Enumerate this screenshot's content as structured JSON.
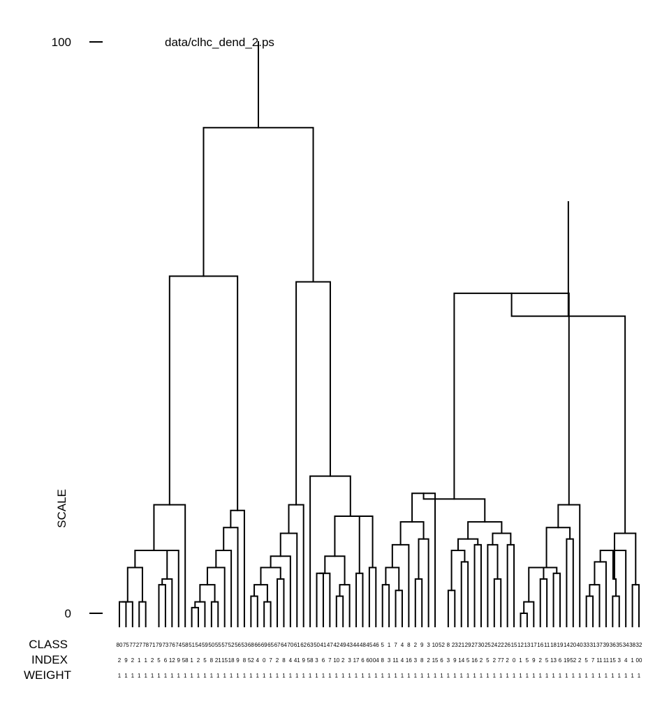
{
  "chart_data": {
    "type": "dendrogram",
    "title": "data/clhc_dend_2.ps",
    "ylabel": "SCALE",
    "ylim": [
      0,
      100
    ],
    "yticks": [
      {
        "value": 100,
        "label": "100"
      },
      {
        "value": 0,
        "label": "0"
      }
    ],
    "row_labels": {
      "class": "CLASS",
      "index": "INDEX",
      "weight": "WEIGHT"
    },
    "leaves": [
      {
        "class": "80",
        "index": "2",
        "weight": "1"
      },
      {
        "class": "75",
        "index": "9",
        "weight": "1"
      },
      {
        "class": "77",
        "index": "2",
        "weight": "1"
      },
      {
        "class": "27",
        "index": "1",
        "weight": "1"
      },
      {
        "class": "78",
        "index": "1",
        "weight": "1"
      },
      {
        "class": "71",
        "index": "2",
        "weight": "1"
      },
      {
        "class": "79",
        "index": "5",
        "weight": "1"
      },
      {
        "class": "73",
        "index": "6",
        "weight": "1"
      },
      {
        "class": "76",
        "index": "12",
        "weight": "1"
      },
      {
        "class": "74",
        "index": "9",
        "weight": "1"
      },
      {
        "class": "58",
        "index": "58",
        "weight": "1"
      },
      {
        "class": "51",
        "index": "1",
        "weight": "1"
      },
      {
        "class": "54",
        "index": "2",
        "weight": "1"
      },
      {
        "class": "59",
        "index": "5",
        "weight": "1"
      },
      {
        "class": "50",
        "index": "8",
        "weight": "1"
      },
      {
        "class": "55",
        "index": "21",
        "weight": "1"
      },
      {
        "class": "57",
        "index": "15",
        "weight": "1"
      },
      {
        "class": "52",
        "index": "18",
        "weight": "1"
      },
      {
        "class": "56",
        "index": "9",
        "weight": "1"
      },
      {
        "class": "53",
        "index": "8",
        "weight": "1"
      },
      {
        "class": "68",
        "index": "52",
        "weight": "1"
      },
      {
        "class": "66",
        "index": "4",
        "weight": "1"
      },
      {
        "class": "69",
        "index": "0",
        "weight": "1"
      },
      {
        "class": "65",
        "index": "7",
        "weight": "1"
      },
      {
        "class": "67",
        "index": "2",
        "weight": "1"
      },
      {
        "class": "64",
        "index": "8",
        "weight": "1"
      },
      {
        "class": "70",
        "index": "4",
        "weight": "1"
      },
      {
        "class": "61",
        "index": "41",
        "weight": "1"
      },
      {
        "class": "62",
        "index": "9",
        "weight": "1"
      },
      {
        "class": "63",
        "index": "58",
        "weight": "1"
      },
      {
        "class": "50",
        "index": "3",
        "weight": "1"
      },
      {
        "class": "41",
        "index": "6",
        "weight": "1"
      },
      {
        "class": "47",
        "index": "7",
        "weight": "1"
      },
      {
        "class": "42",
        "index": "10",
        "weight": "1"
      },
      {
        "class": "49",
        "index": "2",
        "weight": "1"
      },
      {
        "class": "43",
        "index": "3",
        "weight": "1"
      },
      {
        "class": "44",
        "index": "17",
        "weight": "1"
      },
      {
        "class": "48",
        "index": "6",
        "weight": "1"
      },
      {
        "class": "45",
        "index": "60",
        "weight": "1"
      },
      {
        "class": "46",
        "index": "04",
        "weight": "1"
      },
      {
        "class": "5",
        "index": "8",
        "weight": "1"
      },
      {
        "class": "1",
        "index": "3",
        "weight": "1"
      },
      {
        "class": "7",
        "index": "11",
        "weight": "1"
      },
      {
        "class": "4",
        "index": "4",
        "weight": "1"
      },
      {
        "class": "8",
        "index": "16",
        "weight": "1"
      },
      {
        "class": "2",
        "index": "3",
        "weight": "1"
      },
      {
        "class": "9",
        "index": "8",
        "weight": "1"
      },
      {
        "class": "3",
        "index": "2",
        "weight": "1"
      },
      {
        "class": "10",
        "index": "15",
        "weight": "1"
      },
      {
        "class": "52",
        "index": "6",
        "weight": "1"
      },
      {
        "class": "8",
        "index": "3",
        "weight": "1"
      },
      {
        "class": "23",
        "index": "9",
        "weight": "1"
      },
      {
        "class": "21",
        "index": "14",
        "weight": "1"
      },
      {
        "class": "29",
        "index": "5",
        "weight": "1"
      },
      {
        "class": "27",
        "index": "16",
        "weight": "1"
      },
      {
        "class": "30",
        "index": "2",
        "weight": "1"
      },
      {
        "class": "25",
        "index": "5",
        "weight": "1"
      },
      {
        "class": "24",
        "index": "2",
        "weight": "1"
      },
      {
        "class": "22",
        "index": "77",
        "weight": "1"
      },
      {
        "class": "26",
        "index": "2",
        "weight": "1"
      },
      {
        "class": "15",
        "index": "0",
        "weight": "1"
      },
      {
        "class": "12",
        "index": "1",
        "weight": "1"
      },
      {
        "class": "13",
        "index": "5",
        "weight": "1"
      },
      {
        "class": "17",
        "index": "9",
        "weight": "1"
      },
      {
        "class": "16",
        "index": "2",
        "weight": "1"
      },
      {
        "class": "11",
        "index": "5",
        "weight": "1"
      },
      {
        "class": "18",
        "index": "13",
        "weight": "1"
      },
      {
        "class": "19",
        "index": "6",
        "weight": "1"
      },
      {
        "class": "14",
        "index": "19",
        "weight": "1"
      },
      {
        "class": "20",
        "index": "52",
        "weight": "1"
      },
      {
        "class": "40",
        "index": "2",
        "weight": "1"
      },
      {
        "class": "33",
        "index": "5",
        "weight": "1"
      },
      {
        "class": "31",
        "index": "7",
        "weight": "1"
      },
      {
        "class": "37",
        "index": "11",
        "weight": "1"
      },
      {
        "class": "39",
        "index": "11",
        "weight": "1"
      },
      {
        "class": "36",
        "index": "15",
        "weight": "1"
      },
      {
        "class": "35",
        "index": "3",
        "weight": "1"
      },
      {
        "class": "34",
        "index": "4",
        "weight": "1"
      },
      {
        "class": "38",
        "index": "1",
        "weight": "1"
      },
      {
        "class": "32",
        "index": "00",
        "weight": "1"
      }
    ],
    "merges": [
      {
        "a": 0,
        "b": 1,
        "h": 2
      },
      {
        "a": 80,
        "b": 2,
        "h": 2
      },
      {
        "a": 3,
        "b": 4,
        "h": 2
      },
      {
        "a": 6,
        "b": 7,
        "h": 5
      },
      {
        "a": 83,
        "b": 8,
        "h": 6
      },
      {
        "a": 84,
        "b": 9,
        "h": 11
      },
      {
        "a": 81,
        "b": 82,
        "h": 8
      },
      {
        "a": 86,
        "b": 85,
        "h": 11
      },
      {
        "a": 87,
        "b": 10,
        "h": 19
      },
      {
        "a": 11,
        "b": 12,
        "h": 1
      },
      {
        "a": 89,
        "b": 13,
        "h": 2
      },
      {
        "a": 14,
        "b": 15,
        "h": 2
      },
      {
        "a": 90,
        "b": 91,
        "h": 5
      },
      {
        "a": 92,
        "b": 16,
        "h": 8
      },
      {
        "a": 93,
        "b": 17,
        "h": 11
      },
      {
        "a": 94,
        "b": 18,
        "h": 15
      },
      {
        "a": 95,
        "b": 19,
        "h": 18
      },
      {
        "a": 20,
        "b": 21,
        "h": 3
      },
      {
        "a": 22,
        "b": 23,
        "h": 2
      },
      {
        "a": 97,
        "b": 98,
        "h": 5
      },
      {
        "a": 24,
        "b": 25,
        "h": 6
      },
      {
        "a": 99,
        "b": 100,
        "h": 8
      },
      {
        "a": 101,
        "b": 26,
        "h": 10
      },
      {
        "a": 102,
        "b": 27,
        "h": 14
      },
      {
        "a": 103,
        "b": 28,
        "h": 19
      },
      {
        "a": 30,
        "b": 31,
        "h": 7
      },
      {
        "a": 33,
        "b": 34,
        "h": 3
      },
      {
        "a": 105,
        "b": 32,
        "h": 7
      },
      {
        "a": 106,
        "b": 35,
        "h": 5
      },
      {
        "a": 107,
        "b": 108,
        "h": 10
      },
      {
        "a": 36,
        "b": 37,
        "h": 7
      },
      {
        "a": 39,
        "b": 38,
        "h": 8
      },
      {
        "a": 110,
        "b": 111,
        "h": 17
      },
      {
        "a": 109,
        "b": 112,
        "h": 17
      },
      {
        "a": 113,
        "b": 29,
        "h": 24
      },
      {
        "a": 40,
        "b": 41,
        "h": 5
      },
      {
        "a": 42,
        "b": 43,
        "h": 4
      },
      {
        "a": 115,
        "b": 116,
        "h": 8
      },
      {
        "a": 45,
        "b": 46,
        "h": 6
      },
      {
        "a": 117,
        "b": 44,
        "h": 12
      },
      {
        "a": 118,
        "b": 47,
        "h": 13
      },
      {
        "a": 119,
        "b": 120,
        "h": 16
      },
      {
        "a": 121,
        "b": 48,
        "h": 21
      },
      {
        "a": 50,
        "b": 51,
        "h": 4
      },
      {
        "a": 52,
        "b": 53,
        "h": 9
      },
      {
        "a": 123,
        "b": 124,
        "h": 11
      },
      {
        "a": 55,
        "b": 54,
        "h": 12
      },
      {
        "a": 125,
        "b": 126,
        "h": 13
      },
      {
        "a": 57,
        "b": 58,
        "h": 6
      },
      {
        "a": 56,
        "b": 128,
        "h": 12
      },
      {
        "a": 59,
        "b": 60,
        "h": 12
      },
      {
        "a": 129,
        "b": 130,
        "h": 14
      },
      {
        "a": 127,
        "b": 131,
        "h": 16
      },
      {
        "a": 122,
        "b": 132,
        "h": 20
      },
      {
        "a": 61,
        "b": 62,
        "h": 0
      },
      {
        "a": 134,
        "b": 63,
        "h": 2
      },
      {
        "a": 64,
        "b": 65,
        "h": 6
      },
      {
        "a": 135,
        "b": 136,
        "h": 8
      },
      {
        "a": 66,
        "b": 67,
        "h": 7
      },
      {
        "a": 137,
        "b": 138,
        "h": 8
      },
      {
        "a": 68,
        "b": 69,
        "h": 13
      },
      {
        "a": 139,
        "b": 140,
        "h": 15
      },
      {
        "a": 141,
        "b": 70,
        "h": 19
      },
      {
        "a": 71,
        "b": 72,
        "h": 3
      },
      {
        "a": 143,
        "b": 73,
        "h": 5
      },
      {
        "a": 74,
        "b": 144,
        "h": 9
      },
      {
        "a": 75,
        "b": 76,
        "h": 3
      },
      {
        "a": 145,
        "b": 77,
        "h": 11
      },
      {
        "a": 78,
        "b": 79,
        "h": 5
      },
      {
        "a": 146,
        "b": 147,
        "h": 6
      },
      {
        "a": 148,
        "b": 149,
        "h": 14
      },
      {
        "a": 88,
        "b": 96,
        "h": 59
      },
      {
        "a": 104,
        "b": 114,
        "h": 58
      },
      {
        "a": 151,
        "b": 152,
        "h": 85
      },
      {
        "a": 133,
        "b": 142,
        "h": 56
      },
      {
        "a": 150,
        "b": 154,
        "h": 52
      },
      {
        "a": 155,
        "b": 156,
        "h": 72
      },
      {
        "a": 153,
        "b": 157,
        "h": 100
      }
    ]
  }
}
